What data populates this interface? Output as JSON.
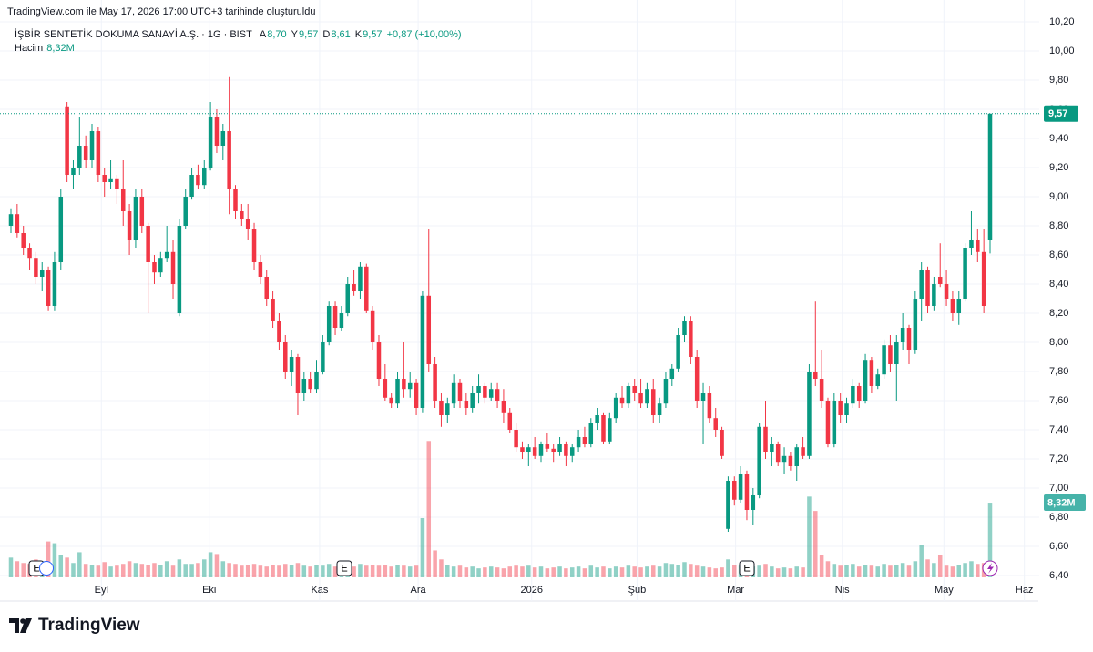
{
  "header": {
    "title": "TradingView.com ile May 17, 2026 17:00 UTC+3 tarihinde oluşturuldu"
  },
  "chart_data": {
    "type": "candlestick",
    "symbol": "İŞBİR SENTETİK DOKUMA SANAYİ A.Ş. · 1G · BIST",
    "ohlc_legend": [
      {
        "key": "A",
        "value": "8,70"
      },
      {
        "key": "Y",
        "value": "9,57"
      },
      {
        "key": "D",
        "value": "8,61"
      },
      {
        "key": "K",
        "value": "9,57"
      }
    ],
    "change": "+0,87 (+10,00%)",
    "volume_legend": {
      "label": "Hacim",
      "value": "8,32M"
    },
    "last_price_label": "9,57",
    "last_volume_label": "8,32M",
    "up_color": "#089981",
    "down_color": "#f23645",
    "grid": true,
    "ylim": [
      6.225,
      10.3
    ],
    "volume_ylim": [
      0,
      40
    ],
    "yticks": [
      {
        "value": 6.4,
        "label": "6,40"
      },
      {
        "value": 6.6,
        "label": "6,60"
      },
      {
        "value": 6.8,
        "label": "6,80"
      },
      {
        "value": 7.0,
        "label": "7,00"
      },
      {
        "value": 7.2,
        "label": "7,20"
      },
      {
        "value": 7.4,
        "label": "7,40"
      },
      {
        "value": 7.6,
        "label": "7,60"
      },
      {
        "value": 7.8,
        "label": "7,80"
      },
      {
        "value": 8.0,
        "label": "8,00"
      },
      {
        "value": 8.2,
        "label": "8,20"
      },
      {
        "value": 8.4,
        "label": "8,40"
      },
      {
        "value": 8.6,
        "label": "8,60"
      },
      {
        "value": 8.8,
        "label": "8,80"
      },
      {
        "value": 9.0,
        "label": "9,00"
      },
      {
        "value": 9.2,
        "label": "9,20"
      },
      {
        "value": 9.4,
        "label": "9,40"
      },
      {
        "value": 9.6,
        "label": "9,60"
      },
      {
        "value": 9.8,
        "label": "9,80"
      },
      {
        "value": 10.0,
        "label": "10,00"
      },
      {
        "value": 10.2,
        "label": "10,20"
      }
    ],
    "x_labels": [
      {
        "index": 14.5,
        "label": "Eyl"
      },
      {
        "index": 31.8,
        "label": "Eki"
      },
      {
        "index": 49.5,
        "label": "Kas"
      },
      {
        "index": 65.3,
        "label": "Ara"
      },
      {
        "index": 83.5,
        "label": "2026"
      },
      {
        "index": 100.4,
        "label": "Şub"
      },
      {
        "index": 116.2,
        "label": "Mar"
      },
      {
        "index": 133.3,
        "label": "Nis"
      },
      {
        "index": 149.6,
        "label": "May"
      },
      {
        "index": 162.5,
        "label": "Haz"
      }
    ],
    "events": [
      "E",
      "E",
      "E"
    ],
    "ohlcv": [
      [
        8.8,
        8.92,
        8.75,
        8.88,
        2.2
      ],
      [
        8.88,
        8.95,
        8.72,
        8.75,
        1.8
      ],
      [
        8.75,
        8.8,
        8.6,
        8.65,
        1.6
      ],
      [
        8.65,
        8.68,
        8.5,
        8.58,
        1.5
      ],
      [
        8.58,
        8.62,
        8.4,
        8.45,
        2.0
      ],
      [
        8.45,
        8.55,
        8.35,
        8.5,
        1.8
      ],
      [
        8.5,
        8.52,
        8.22,
        8.25,
        4.0
      ],
      [
        8.25,
        8.62,
        8.22,
        8.55,
        3.8
      ],
      [
        8.55,
        9.05,
        8.5,
        9.0,
        2.5
      ],
      [
        9.62,
        9.65,
        9.1,
        9.15,
        2.2
      ],
      [
        9.15,
        9.25,
        9.05,
        9.2,
        1.6
      ],
      [
        9.2,
        9.55,
        9.15,
        9.35,
        2.8
      ],
      [
        9.35,
        9.42,
        9.2,
        9.25,
        1.5
      ],
      [
        9.25,
        9.5,
        9.2,
        9.45,
        1.4
      ],
      [
        9.45,
        9.48,
        9.1,
        9.15,
        1.3
      ],
      [
        9.15,
        9.2,
        9.0,
        9.1,
        1.7
      ],
      [
        9.1,
        9.25,
        9.05,
        9.12,
        1.2
      ],
      [
        9.12,
        9.15,
        8.95,
        9.05,
        1.3
      ],
      [
        9.05,
        9.25,
        8.8,
        8.9,
        1.5
      ],
      [
        8.9,
        8.95,
        8.6,
        8.7,
        1.8
      ],
      [
        8.7,
        9.05,
        8.65,
        9.0,
        1.6
      ],
      [
        9.0,
        9.05,
        8.75,
        8.8,
        1.5
      ],
      [
        8.8,
        8.82,
        8.2,
        8.55,
        1.4
      ],
      [
        8.55,
        8.6,
        8.4,
        8.48,
        1.6
      ],
      [
        8.48,
        8.62,
        8.45,
        8.58,
        1.4
      ],
      [
        8.58,
        8.8,
        8.55,
        8.62,
        1.8
      ],
      [
        8.62,
        8.7,
        8.3,
        8.4,
        1.3
      ],
      [
        8.2,
        8.85,
        8.18,
        8.8,
        2.0
      ],
      [
        8.8,
        9.05,
        8.78,
        9.0,
        1.5
      ],
      [
        9.0,
        9.2,
        8.98,
        9.15,
        1.5
      ],
      [
        9.15,
        9.22,
        9.05,
        9.08,
        1.6
      ],
      [
        9.08,
        9.25,
        9.05,
        9.2,
        2.0
      ],
      [
        9.2,
        9.65,
        9.18,
        9.55,
        2.8
      ],
      [
        9.55,
        9.6,
        9.3,
        9.35,
        2.6
      ],
      [
        9.35,
        9.5,
        9.25,
        9.45,
        1.8
      ],
      [
        9.45,
        9.82,
        8.88,
        9.05,
        1.6
      ],
      [
        9.05,
        9.08,
        8.85,
        8.9,
        1.5
      ],
      [
        8.9,
        8.95,
        8.8,
        8.85,
        1.3
      ],
      [
        8.85,
        8.95,
        8.7,
        8.78,
        1.4
      ],
      [
        8.78,
        8.82,
        8.5,
        8.55,
        1.5
      ],
      [
        8.55,
        8.6,
        8.4,
        8.45,
        1.3
      ],
      [
        8.45,
        8.5,
        8.25,
        8.3,
        1.2
      ],
      [
        8.3,
        8.35,
        8.1,
        8.15,
        1.4
      ],
      [
        8.15,
        8.2,
        7.95,
        8.0,
        1.3
      ],
      [
        8.0,
        8.05,
        7.75,
        7.8,
        1.5
      ],
      [
        7.8,
        7.95,
        7.7,
        7.9,
        1.4
      ],
      [
        7.9,
        7.92,
        7.5,
        7.65,
        1.6
      ],
      [
        7.65,
        7.8,
        7.6,
        7.75,
        1.3
      ],
      [
        7.75,
        7.8,
        7.65,
        7.68,
        1.2
      ],
      [
        7.68,
        7.88,
        7.65,
        7.8,
        1.4
      ],
      [
        7.8,
        8.05,
        7.78,
        8.0,
        1.3
      ],
      [
        8.0,
        8.28,
        7.98,
        8.25,
        1.5
      ],
      [
        8.25,
        8.28,
        8.05,
        8.1,
        1.2
      ],
      [
        8.1,
        8.25,
        8.08,
        8.2,
        1.3
      ],
      [
        8.2,
        8.45,
        8.18,
        8.4,
        1.4
      ],
      [
        8.4,
        8.5,
        8.32,
        8.35,
        1.2
      ],
      [
        8.35,
        8.55,
        8.3,
        8.52,
        1.5
      ],
      [
        8.52,
        8.54,
        8.2,
        8.22,
        1.3
      ],
      [
        8.22,
        8.25,
        7.95,
        8.0,
        1.4
      ],
      [
        8.0,
        8.05,
        7.7,
        7.75,
        1.3
      ],
      [
        7.75,
        7.85,
        7.6,
        7.62,
        1.4
      ],
      [
        7.62,
        7.65,
        7.55,
        7.58,
        1.2
      ],
      [
        7.58,
        7.8,
        7.55,
        7.75,
        1.4
      ],
      [
        7.75,
        8.0,
        7.62,
        7.68,
        1.3
      ],
      [
        7.68,
        7.8,
        7.62,
        7.72,
        1.2
      ],
      [
        7.72,
        7.75,
        7.5,
        7.55,
        1.3
      ],
      [
        7.55,
        8.35,
        7.52,
        8.32,
        6.6
      ],
      [
        8.32,
        8.78,
        7.8,
        7.85,
        15.2
      ],
      [
        7.85,
        7.9,
        7.55,
        7.6,
        3.0
      ],
      [
        7.6,
        7.65,
        7.42,
        7.5,
        2.0
      ],
      [
        7.5,
        7.62,
        7.45,
        7.58,
        1.4
      ],
      [
        7.58,
        7.78,
        7.55,
        7.72,
        1.2
      ],
      [
        7.72,
        7.75,
        7.55,
        7.6,
        1.3
      ],
      [
        7.6,
        7.65,
        7.5,
        7.55,
        1.1
      ],
      [
        7.55,
        7.7,
        7.52,
        7.65,
        1.2
      ],
      [
        7.65,
        7.78,
        7.58,
        7.7,
        1.0
      ],
      [
        7.7,
        7.72,
        7.58,
        7.62,
        1.1
      ],
      [
        7.62,
        7.72,
        7.6,
        7.68,
        1.2
      ],
      [
        7.68,
        7.72,
        7.55,
        7.6,
        1.1
      ],
      [
        7.6,
        7.68,
        7.45,
        7.52,
        1.0
      ],
      [
        7.52,
        7.55,
        7.38,
        7.4,
        1.2
      ],
      [
        7.4,
        7.45,
        7.25,
        7.28,
        1.3
      ],
      [
        7.28,
        7.32,
        7.2,
        7.25,
        1.2
      ],
      [
        7.25,
        7.3,
        7.15,
        7.28,
        1.3
      ],
      [
        7.28,
        7.35,
        7.2,
        7.22,
        1.1
      ],
      [
        7.22,
        7.32,
        7.18,
        7.3,
        1.2
      ],
      [
        7.3,
        7.38,
        7.25,
        7.27,
        1.0
      ],
      [
        7.27,
        7.3,
        7.18,
        7.25,
        1.1
      ],
      [
        7.25,
        7.35,
        7.22,
        7.3,
        1.2
      ],
      [
        7.3,
        7.32,
        7.15,
        7.22,
        1.0
      ],
      [
        7.22,
        7.3,
        7.18,
        7.28,
        1.1
      ],
      [
        7.28,
        7.4,
        7.25,
        7.35,
        1.2
      ],
      [
        7.35,
        7.42,
        7.28,
        7.3,
        1.0
      ],
      [
        7.3,
        7.48,
        7.28,
        7.45,
        1.3
      ],
      [
        7.45,
        7.55,
        7.4,
        7.5,
        1.1
      ],
      [
        7.5,
        7.52,
        7.3,
        7.32,
        1.2
      ],
      [
        7.32,
        7.52,
        7.3,
        7.48,
        1.0
      ],
      [
        7.48,
        7.65,
        7.45,
        7.62,
        1.2
      ],
      [
        7.62,
        7.7,
        7.55,
        7.58,
        1.1
      ],
      [
        7.58,
        7.72,
        7.55,
        7.7,
        1.3
      ],
      [
        7.7,
        7.75,
        7.6,
        7.65,
        1.2
      ],
      [
        7.65,
        7.75,
        7.55,
        7.58,
        1.1
      ],
      [
        7.58,
        7.72,
        7.55,
        7.68,
        1.2
      ],
      [
        7.68,
        7.75,
        7.45,
        7.5,
        1.3
      ],
      [
        7.5,
        7.62,
        7.45,
        7.58,
        1.2
      ],
      [
        7.58,
        7.8,
        7.55,
        7.75,
        1.6
      ],
      [
        7.75,
        7.85,
        7.7,
        7.82,
        1.5
      ],
      [
        7.82,
        8.1,
        7.8,
        8.05,
        1.4
      ],
      [
        8.05,
        8.18,
        8.0,
        8.15,
        1.7
      ],
      [
        8.15,
        8.18,
        7.85,
        7.9,
        1.5
      ],
      [
        7.9,
        7.95,
        7.55,
        7.6,
        1.3
      ],
      [
        7.6,
        7.72,
        7.3,
        7.65,
        1.2
      ],
      [
        7.65,
        7.7,
        7.45,
        7.48,
        1.1
      ],
      [
        7.48,
        7.55,
        7.35,
        7.4,
        1.0
      ],
      [
        7.4,
        7.42,
        7.2,
        7.22,
        1.1
      ],
      [
        6.72,
        7.08,
        6.7,
        7.05,
        2.0
      ],
      [
        7.05,
        7.08,
        6.88,
        6.92,
        1.4
      ],
      [
        6.92,
        7.15,
        6.9,
        7.1,
        1.3
      ],
      [
        7.1,
        7.12,
        6.78,
        6.85,
        1.6
      ],
      [
        6.85,
        7.0,
        6.75,
        6.95,
        1.2
      ],
      [
        6.95,
        7.45,
        6.93,
        7.42,
        1.3
      ],
      [
        7.42,
        7.6,
        7.2,
        7.25,
        1.5
      ],
      [
        7.25,
        7.35,
        7.15,
        7.3,
        1.2
      ],
      [
        7.3,
        7.32,
        7.15,
        7.18,
        1.0
      ],
      [
        7.18,
        7.28,
        7.1,
        7.22,
        1.1
      ],
      [
        7.22,
        7.25,
        7.12,
        7.15,
        1.0
      ],
      [
        7.15,
        7.3,
        7.05,
        7.28,
        1.2
      ],
      [
        7.28,
        7.35,
        7.2,
        7.22,
        1.1
      ],
      [
        7.22,
        7.85,
        7.2,
        7.8,
        9.0
      ],
      [
        7.8,
        8.28,
        7.7,
        7.75,
        7.4
      ],
      [
        7.75,
        7.95,
        7.55,
        7.6,
        2.5
      ],
      [
        7.6,
        7.62,
        7.28,
        7.3,
        1.8
      ],
      [
        7.3,
        7.65,
        7.28,
        7.6,
        1.5
      ],
      [
        7.6,
        7.65,
        7.45,
        7.5,
        1.3
      ],
      [
        7.5,
        7.62,
        7.45,
        7.58,
        1.4
      ],
      [
        7.58,
        7.75,
        7.55,
        7.7,
        1.5
      ],
      [
        7.7,
        7.72,
        7.55,
        7.6,
        1.2
      ],
      [
        7.6,
        7.92,
        7.58,
        7.88,
        1.4
      ],
      [
        7.88,
        7.9,
        7.65,
        7.7,
        1.3
      ],
      [
        7.7,
        7.82,
        7.68,
        7.78,
        1.2
      ],
      [
        7.78,
        8.02,
        7.75,
        7.98,
        1.5
      ],
      [
        7.98,
        8.05,
        7.8,
        7.85,
        1.3
      ],
      [
        7.85,
        8.05,
        7.6,
        8.0,
        1.4
      ],
      [
        8.0,
        8.2,
        7.95,
        8.1,
        1.6
      ],
      [
        8.1,
        8.12,
        7.85,
        7.95,
        1.3
      ],
      [
        7.95,
        8.35,
        7.92,
        8.3,
        1.8
      ],
      [
        8.3,
        8.55,
        8.15,
        8.5,
        3.6
      ],
      [
        8.5,
        8.52,
        8.2,
        8.25,
        2.0
      ],
      [
        8.25,
        8.45,
        8.22,
        8.4,
        1.6
      ],
      [
        8.45,
        8.68,
        8.38,
        8.4,
        2.5
      ],
      [
        8.4,
        8.5,
        8.25,
        8.3,
        1.3
      ],
      [
        8.3,
        8.35,
        8.15,
        8.2,
        1.2
      ],
      [
        8.2,
        8.35,
        8.12,
        8.3,
        1.4
      ],
      [
        8.3,
        8.68,
        8.28,
        8.65,
        1.6
      ],
      [
        8.65,
        8.9,
        8.6,
        8.7,
        1.8
      ],
      [
        8.7,
        8.78,
        8.55,
        8.62,
        1.5
      ],
      [
        8.62,
        8.78,
        8.2,
        8.25,
        1.6
      ],
      [
        8.7,
        9.57,
        8.61,
        9.57,
        8.32
      ]
    ]
  },
  "footer": {
    "brand": "TradingView"
  }
}
